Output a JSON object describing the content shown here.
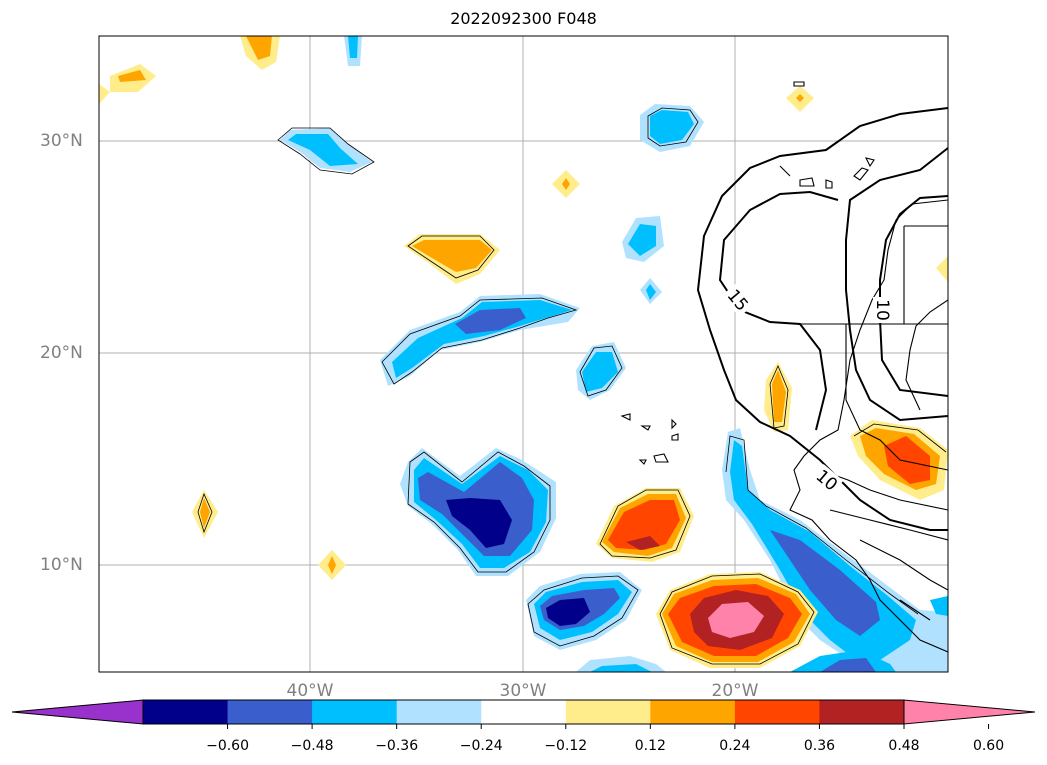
{
  "title": "2022092300 F048",
  "lat_labels": [
    "30°N",
    "20°N",
    "10°N"
  ],
  "lon_labels": [
    "40°W",
    "30°W",
    "20°W"
  ],
  "contour_labels": [
    "15",
    "10",
    "10"
  ],
  "colorbar": {
    "colors": [
      "#9932cc",
      "#00008b",
      "#3a5fcd",
      "#00bfff",
      "#b0e2ff",
      "#ffffff",
      "#ffec8b",
      "#ffa500",
      "#ff4500",
      "#b22222",
      "#ff82ab"
    ],
    "ticks": [
      "−0.60",
      "−0.48",
      "−0.36",
      "−0.24",
      "−0.12",
      "0.12",
      "0.24",
      "0.36",
      "0.48",
      "0.60"
    ]
  }
}
